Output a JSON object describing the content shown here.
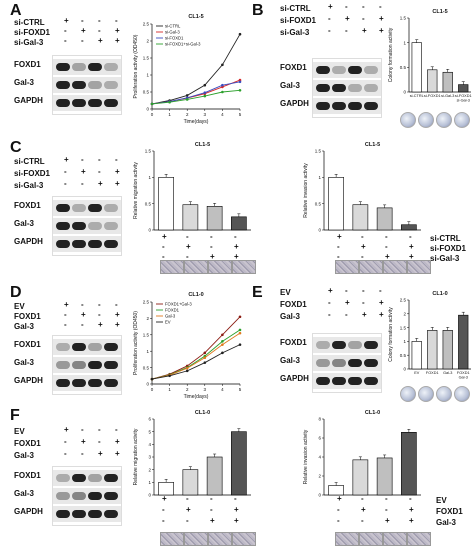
{
  "panels": {
    "A": {
      "letter": "A",
      "conditions": [
        "si-CTRL",
        "si-FOXD1",
        "si-Gal-3"
      ],
      "signs": [
        [
          "+",
          "-",
          "-",
          "-"
        ],
        [
          "-",
          "+",
          "-",
          "+"
        ],
        [
          "-",
          "-",
          "+",
          "+"
        ]
      ],
      "blots": [
        "FOXD1",
        "Gal-3",
        "GAPDH"
      ],
      "chart_title": "CL1-5",
      "ylabel": "Proliferation activity (OD450)",
      "xlabel": "Time(days)"
    },
    "B": {
      "letter": "B",
      "conditions": [
        "si-CTRL",
        "si-FOXD1",
        "si-Gal-3"
      ],
      "signs": [
        [
          "+",
          "-",
          "-",
          "-"
        ],
        [
          "-",
          "+",
          "-",
          "+"
        ],
        [
          "-",
          "-",
          "+",
          "+"
        ]
      ],
      "blots": [
        "FOXD1",
        "Gal-3",
        "GAPDH"
      ],
      "chart_title": "CL1-5",
      "ylabel": "Colony formation activity"
    },
    "C": {
      "letter": "C",
      "conditions": [
        "si-CTRL",
        "si-FOXD1",
        "si-Gal-3"
      ],
      "signs": [
        [
          "+",
          "-",
          "-",
          "-"
        ],
        [
          "-",
          "+",
          "-",
          "+"
        ],
        [
          "-",
          "-",
          "+",
          "+"
        ]
      ],
      "blots": [
        "FOXD1",
        "Gal-3",
        "GAPDH"
      ],
      "chart_title_left": "CL1-5",
      "chart_title_right": "CL1-5",
      "ylabel_left": "Relative migration activity",
      "ylabel_right": "Relative invasion activity",
      "bottom_labels": [
        "si-CTRL",
        "si-FOXD1",
        "si-Gal-3"
      ]
    },
    "D": {
      "letter": "D",
      "conditions": [
        "EV",
        "FOXD1",
        "Gal-3"
      ],
      "signs": [
        [
          "+",
          "-",
          "-",
          "-"
        ],
        [
          "-",
          "+",
          "-",
          "+"
        ],
        [
          "-",
          "-",
          "+",
          "+"
        ]
      ],
      "blots": [
        "FOXD1",
        "Gal-3",
        "GAPDH"
      ],
      "chart_title": "CL1-0",
      "ylabel": "Proliferation activity (OD450)",
      "xlabel": "Time(days)"
    },
    "E": {
      "letter": "E",
      "conditions": [
        "EV",
        "FOXD1",
        "Gal-3"
      ],
      "signs": [
        [
          "+",
          "-",
          "-",
          "-"
        ],
        [
          "-",
          "+",
          "-",
          "+"
        ],
        [
          "-",
          "-",
          "+",
          "+"
        ]
      ],
      "blots": [
        "FOXD1",
        "Gal-3",
        "GAPDH"
      ],
      "chart_title": "CL1-0",
      "ylabel": "Colony formation activity"
    },
    "F": {
      "letter": "F",
      "conditions": [
        "EV",
        "FOXD1",
        "Gal-3"
      ],
      "signs": [
        [
          "+",
          "-",
          "-",
          "-"
        ],
        [
          "-",
          "+",
          "-",
          "+"
        ],
        [
          "-",
          "-",
          "+",
          "+"
        ]
      ],
      "blots": [
        "FOXD1",
        "Gal-3",
        "GAPDH"
      ],
      "chart_title_left": "CL1-0",
      "chart_title_right": "CL1-0",
      "ylabel_left": "Relative migration activity",
      "ylabel_right": "Relative invasion activity",
      "bottom_labels": [
        "EV",
        "FOXD1",
        "Gal-3"
      ]
    }
  },
  "chart_data": [
    {
      "id": "A-prolif",
      "type": "line",
      "title": "CL1-5",
      "xlabel": "Time(days)",
      "ylabel": "Proliferation activity (OD450)",
      "x": [
        0,
        1,
        2,
        3,
        4,
        5
      ],
      "ylim": [
        0,
        2.5
      ],
      "yticks": [
        0,
        0.5,
        1,
        1.5,
        2,
        2.5
      ],
      "series": [
        {
          "name": "si-CTRL",
          "color": "#222222",
          "values": [
            0.15,
            0.25,
            0.4,
            0.7,
            1.3,
            2.2
          ]
        },
        {
          "name": "si-Gal-3",
          "color": "#d62728",
          "values": [
            0.15,
            0.22,
            0.32,
            0.45,
            0.65,
            0.85
          ]
        },
        {
          "name": "si-FOXD1",
          "color": "#3b4cc0",
          "values": [
            0.15,
            0.22,
            0.33,
            0.48,
            0.7,
            0.8
          ]
        },
        {
          "name": "si-FOXD1+si-Gal-3",
          "color": "#2ca02c",
          "values": [
            0.15,
            0.2,
            0.28,
            0.38,
            0.5,
            0.55
          ]
        }
      ]
    },
    {
      "id": "B-colony",
      "type": "bar",
      "title": "CL1-5",
      "ylabel": "Colony formation activity",
      "categories": [
        "si-CTRL",
        "si-FOXD1",
        "si-Gal-3",
        "si-FOXD1 si-Gal-3"
      ],
      "values": [
        1.0,
        0.45,
        0.4,
        0.15
      ],
      "ylim": [
        0,
        1.5
      ],
      "yticks": [
        0,
        0.5,
        1,
        1.5
      ],
      "colors": [
        "#ffffff",
        "#d9d9d9",
        "#bfbfbf",
        "#555555"
      ]
    },
    {
      "id": "C-migration",
      "type": "bar",
      "title": "CL1-5",
      "ylabel": "Relative migration activity",
      "categories": [
        "1",
        "2",
        "3",
        "4"
      ],
      "values": [
        1.0,
        0.48,
        0.45,
        0.25
      ],
      "ylim": [
        0,
        1.5
      ],
      "yticks": [
        0,
        0.5,
        1,
        1.5
      ],
      "colors": [
        "#ffffff",
        "#d9d9d9",
        "#bfbfbf",
        "#555555"
      ]
    },
    {
      "id": "C-invasion",
      "type": "bar",
      "title": "CL1-5",
      "ylabel": "Relative invasion activity",
      "categories": [
        "1",
        "2",
        "3",
        "4"
      ],
      "values": [
        1.0,
        0.48,
        0.42,
        0.1
      ],
      "ylim": [
        0,
        1.5
      ],
      "yticks": [
        0,
        0.5,
        1,
        1.5
      ],
      "colors": [
        "#ffffff",
        "#d9d9d9",
        "#bfbfbf",
        "#555555"
      ]
    },
    {
      "id": "D-prolif",
      "type": "line",
      "title": "CL1-0",
      "xlabel": "Time(days)",
      "ylabel": "Proliferation activity (OD450)",
      "x": [
        0,
        1,
        2,
        3,
        4,
        5
      ],
      "ylim": [
        0,
        2.5
      ],
      "yticks": [
        0,
        0.5,
        1,
        1.5,
        2,
        2.5
      ],
      "series": [
        {
          "name": "FOXD1+Gal-3",
          "color": "#8c1c13",
          "values": [
            0.15,
            0.3,
            0.55,
            0.95,
            1.5,
            2.05
          ]
        },
        {
          "name": "FOXD1",
          "color": "#2ca02c",
          "values": [
            0.15,
            0.28,
            0.5,
            0.85,
            1.3,
            1.65
          ]
        },
        {
          "name": "Gal-3",
          "color": "#e07a1f",
          "values": [
            0.15,
            0.27,
            0.48,
            0.8,
            1.2,
            1.55
          ]
        },
        {
          "name": "EV",
          "color": "#222222",
          "values": [
            0.15,
            0.25,
            0.4,
            0.65,
            0.95,
            1.2
          ]
        }
      ]
    },
    {
      "id": "E-colony",
      "type": "bar",
      "title": "CL1-0",
      "ylabel": "Colony formation activity",
      "categories": [
        "EV",
        "FOXD1",
        "Gal-3",
        "FOXD1 Gal-3"
      ],
      "values": [
        1.0,
        1.4,
        1.4,
        1.95
      ],
      "ylim": [
        0,
        2.5
      ],
      "yticks": [
        0,
        0.5,
        1,
        1.5,
        2,
        2.5
      ],
      "colors": [
        "#ffffff",
        "#d9d9d9",
        "#bfbfbf",
        "#555555"
      ]
    },
    {
      "id": "F-migration",
      "type": "bar",
      "title": "CL1-0",
      "ylabel": "Relative migration activity",
      "categories": [
        "1",
        "2",
        "3",
        "4"
      ],
      "values": [
        1.0,
        2.0,
        3.0,
        5.0
      ],
      "ylim": [
        0,
        6
      ],
      "yticks": [
        0,
        1,
        2,
        3,
        4,
        5,
        6
      ],
      "colors": [
        "#ffffff",
        "#d9d9d9",
        "#bfbfbf",
        "#555555"
      ]
    },
    {
      "id": "F-invasion",
      "type": "bar",
      "title": "CL1-0",
      "ylabel": "Relative invasion activity",
      "categories": [
        "1",
        "2",
        "3",
        "4"
      ],
      "values": [
        1.0,
        3.7,
        3.9,
        6.6
      ],
      "ylim": [
        0,
        8
      ],
      "yticks": [
        0,
        2,
        4,
        6,
        8
      ],
      "colors": [
        "#ffffff",
        "#d9d9d9",
        "#bfbfbf",
        "#555555"
      ]
    }
  ]
}
